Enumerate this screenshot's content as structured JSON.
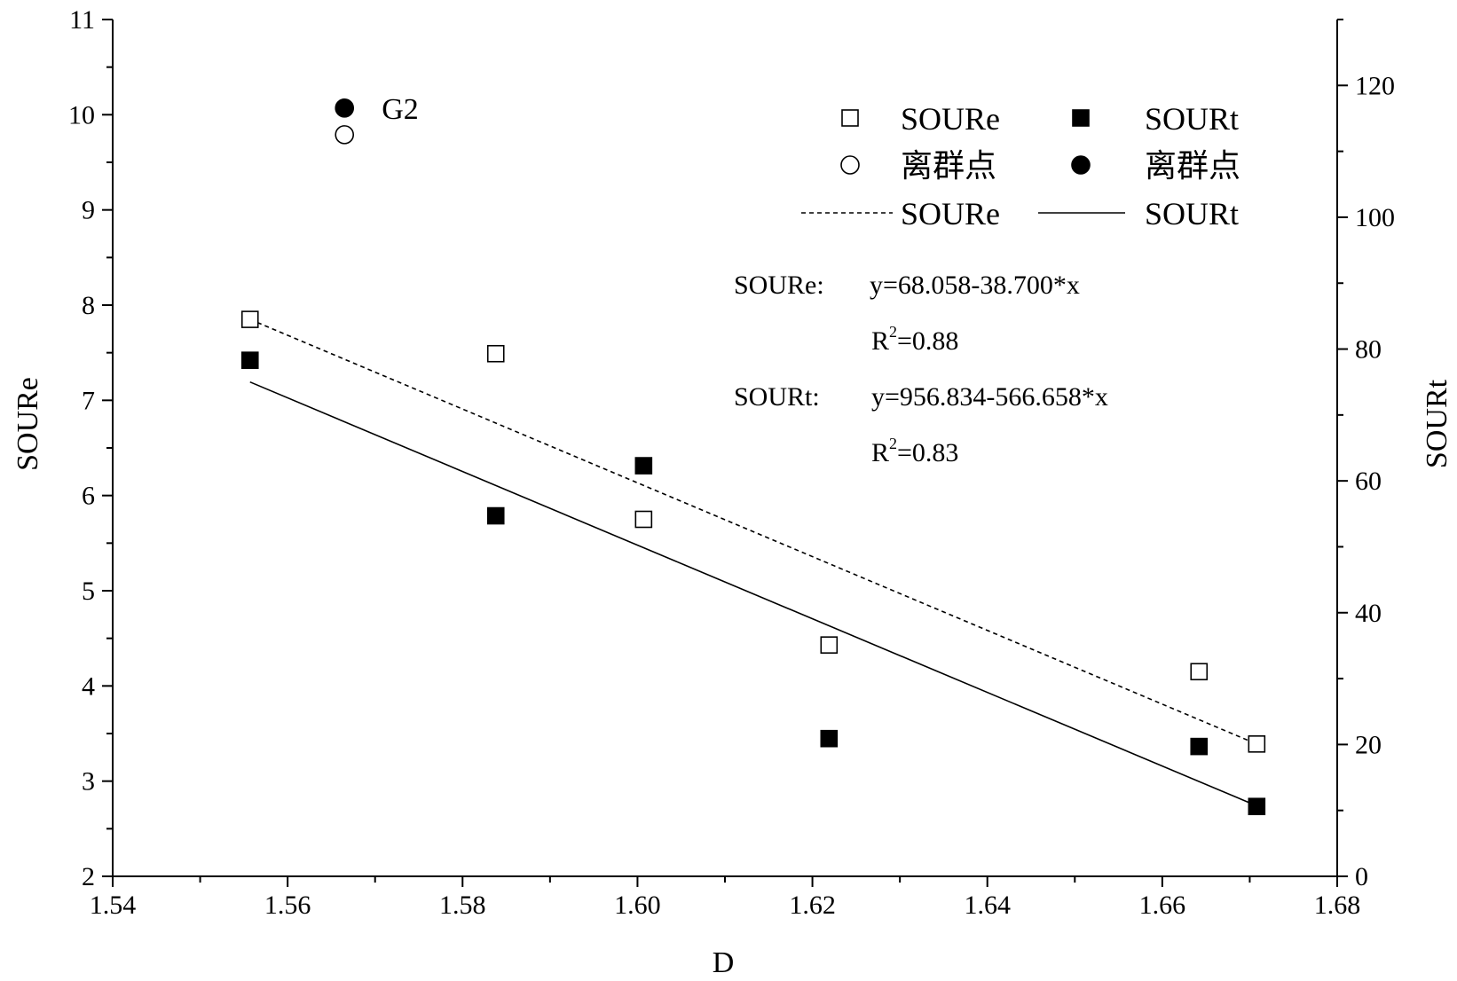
{
  "chart_data": {
    "type": "scatter",
    "xlabel": "D",
    "ylabel_left": "SOURe",
    "ylabel_right": "SOURt",
    "xlim": [
      1.54,
      1.68
    ],
    "ylim_left": [
      2,
      11
    ],
    "ylim_right": [
      0,
      130
    ],
    "x_ticks": [
      "1.54",
      "1.56",
      "1.58",
      "1.60",
      "1.62",
      "1.64",
      "1.66",
      "1.68"
    ],
    "y_left_ticks": [
      "2",
      "3",
      "4",
      "5",
      "6",
      "7",
      "8",
      "9",
      "10",
      "11"
    ],
    "y_right_ticks": [
      "0",
      "20",
      "40",
      "60",
      "80",
      "100",
      "120"
    ],
    "series": [
      {
        "name": "SOURe",
        "axis": "left",
        "marker": "open-square",
        "x": [
          1.5557,
          1.5838,
          1.6007,
          1.6219,
          1.6642,
          1.6708
        ],
        "y": [
          7.85,
          7.49,
          5.75,
          4.43,
          4.15,
          3.39
        ]
      },
      {
        "name": "SOURt",
        "axis": "right",
        "marker": "filled-square",
        "x": [
          1.5557,
          1.5838,
          1.6007,
          1.6219,
          1.6642,
          1.6708
        ],
        "y": [
          78.3,
          54.7,
          62.3,
          20.9,
          19.7,
          10.6
        ]
      }
    ],
    "fits": [
      {
        "name": "SOURe",
        "axis": "left",
        "style": "dashed",
        "x": [
          1.5557,
          1.6708
        ],
        "y": [
          7.85,
          3.39
        ]
      },
      {
        "name": "SOURt",
        "axis": "right",
        "style": "solid",
        "x": [
          1.5557,
          1.6708
        ],
        "y": [
          75.0,
          10.7
        ]
      }
    ],
    "annotations": {
      "outlier_label": "G2",
      "outlier_filled_x": 1.5665,
      "outlier_filled_y_left": 10.07,
      "outlier_open_x": 1.5665,
      "outlier_open_y_left": 9.79
    },
    "legend": {
      "placement": "top-right",
      "entries": [
        {
          "marker": "open-square",
          "label": "SOURe"
        },
        {
          "marker": "filled-square",
          "label": "SOURt"
        },
        {
          "marker": "open-circle",
          "label": "离群点"
        },
        {
          "marker": "filled-circle",
          "label": "离群点"
        },
        {
          "marker": "dashed-line",
          "label": "SOURe"
        },
        {
          "marker": "solid-line",
          "label": "SOURt"
        }
      ]
    },
    "equations": {
      "soure_label": "SOURe:",
      "soure_eq": "y=68.058-38.700*x",
      "soure_r2_base": "R",
      "soure_r2_sup": "2",
      "soure_r2_val": "=0.88",
      "sourt_label": "SOURt:",
      "sourt_eq": "y=956.834-566.658*x",
      "sourt_r2_base": "R",
      "sourt_r2_sup": "2",
      "sourt_r2_val": "=0.83"
    }
  }
}
